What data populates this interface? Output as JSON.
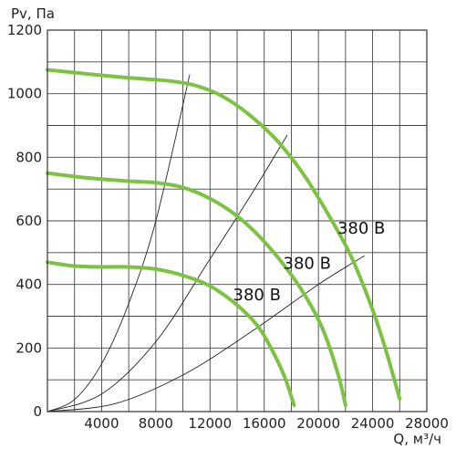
{
  "chart_data": {
    "type": "line",
    "title": "",
    "ylabel": "Pv, Па",
    "xlabel": "Q, м³/ч",
    "xlim": [
      0,
      28000
    ],
    "ylim": [
      0,
      1200
    ],
    "x_ticks": [
      "4000",
      "8000",
      "12000",
      "16000",
      "20000",
      "24000",
      "28000"
    ],
    "y_ticks": [
      "0",
      "200",
      "400",
      "600",
      "800",
      "1000",
      "1200"
    ],
    "grid": true,
    "fan_color": "#7dc242",
    "series": [
      {
        "name": "380 В",
        "label_at": [
          21400,
          560
        ],
        "points": [
          [
            0,
            1075
          ],
          [
            3000,
            1062
          ],
          [
            6000,
            1050
          ],
          [
            9000,
            1040
          ],
          [
            11000,
            1025
          ],
          [
            13000,
            990
          ],
          [
            15000,
            930
          ],
          [
            17000,
            850
          ],
          [
            19000,
            740
          ],
          [
            21000,
            600
          ],
          [
            22500,
            480
          ],
          [
            24000,
            320
          ],
          [
            25000,
            190
          ],
          [
            26000,
            40
          ]
        ]
      },
      {
        "name": "380 В",
        "label_at": [
          17400,
          450
        ],
        "points": [
          [
            0,
            750
          ],
          [
            3000,
            735
          ],
          [
            6000,
            725
          ],
          [
            8000,
            720
          ],
          [
            10000,
            705
          ],
          [
            12000,
            670
          ],
          [
            14000,
            615
          ],
          [
            16000,
            535
          ],
          [
            18000,
            430
          ],
          [
            19500,
            330
          ],
          [
            20500,
            240
          ],
          [
            21500,
            110
          ],
          [
            22000,
            20
          ]
        ]
      },
      {
        "name": "380 В",
        "label_at": [
          13700,
          350
        ],
        "points": [
          [
            0,
            470
          ],
          [
            2000,
            458
          ],
          [
            4000,
            455
          ],
          [
            6000,
            455
          ],
          [
            8000,
            448
          ],
          [
            10000,
            428
          ],
          [
            12000,
            395
          ],
          [
            14000,
            335
          ],
          [
            15500,
            270
          ],
          [
            16500,
            200
          ],
          [
            17500,
            110
          ],
          [
            18200,
            20
          ]
        ]
      }
    ],
    "system_curves": [
      {
        "points": [
          [
            0,
            0
          ],
          [
            2000,
            38
          ],
          [
            4000,
            150
          ],
          [
            6000,
            340
          ],
          [
            8000,
            600
          ],
          [
            10500,
            1060
          ]
        ]
      },
      {
        "points": [
          [
            0,
            0
          ],
          [
            4000,
            55
          ],
          [
            8000,
            220
          ],
          [
            12000,
            480
          ],
          [
            15000,
            680
          ],
          [
            17700,
            870
          ]
        ]
      },
      {
        "points": [
          [
            0,
            0
          ],
          [
            5000,
            25
          ],
          [
            10000,
            115
          ],
          [
            15000,
            250
          ],
          [
            20000,
            400
          ],
          [
            23400,
            490
          ]
        ]
      }
    ]
  }
}
